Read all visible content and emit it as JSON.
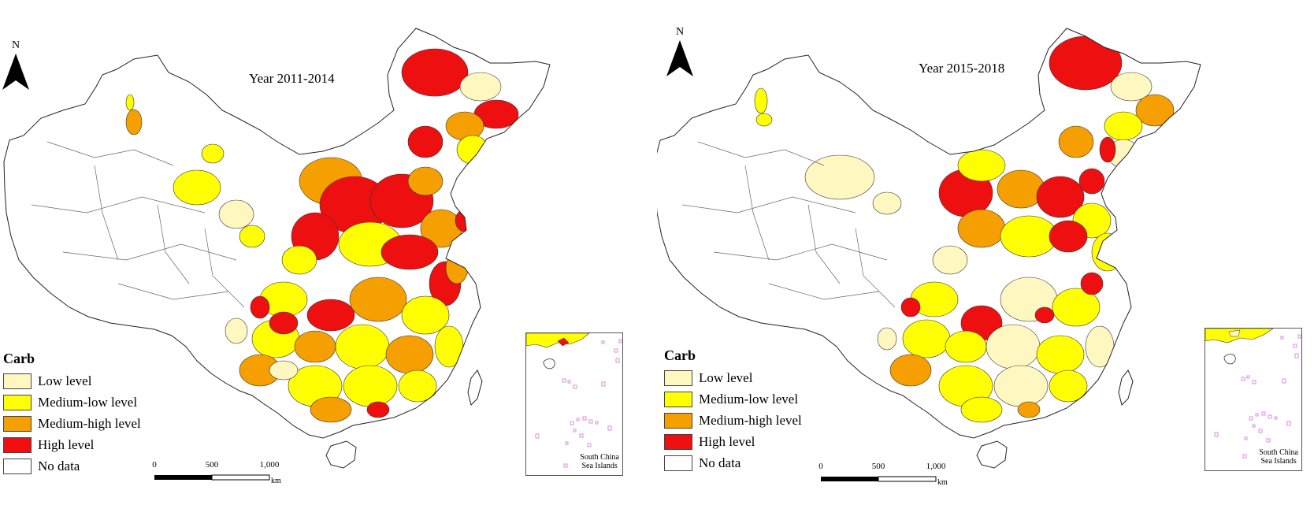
{
  "colors": {
    "low": "#fff7c0",
    "medium_low": "#ffff00",
    "medium_high": "#f5a000",
    "high": "#ee1010",
    "no_data": "#ffffff",
    "border": "#333333",
    "islands": "#d88ee0"
  },
  "north_arrow": {
    "label": "N"
  },
  "legend": {
    "title": "Carb",
    "items": [
      {
        "key": "low",
        "label": "Low level"
      },
      {
        "key": "medium_low",
        "label": "Medium-low level"
      },
      {
        "key": "medium_high",
        "label": "Medium-high level"
      },
      {
        "key": "high",
        "label": "High level"
      },
      {
        "key": "no_data",
        "label": "No data"
      }
    ]
  },
  "scale_bar": {
    "ticks": [
      "0",
      "500",
      "1,000"
    ],
    "unit": "km"
  },
  "inset": {
    "label_line1": "South China",
    "label_line2": "Sea Islands"
  },
  "maps": [
    {
      "title": "Year 2011-2014"
    },
    {
      "title": "Year 2015-2018"
    }
  ]
}
